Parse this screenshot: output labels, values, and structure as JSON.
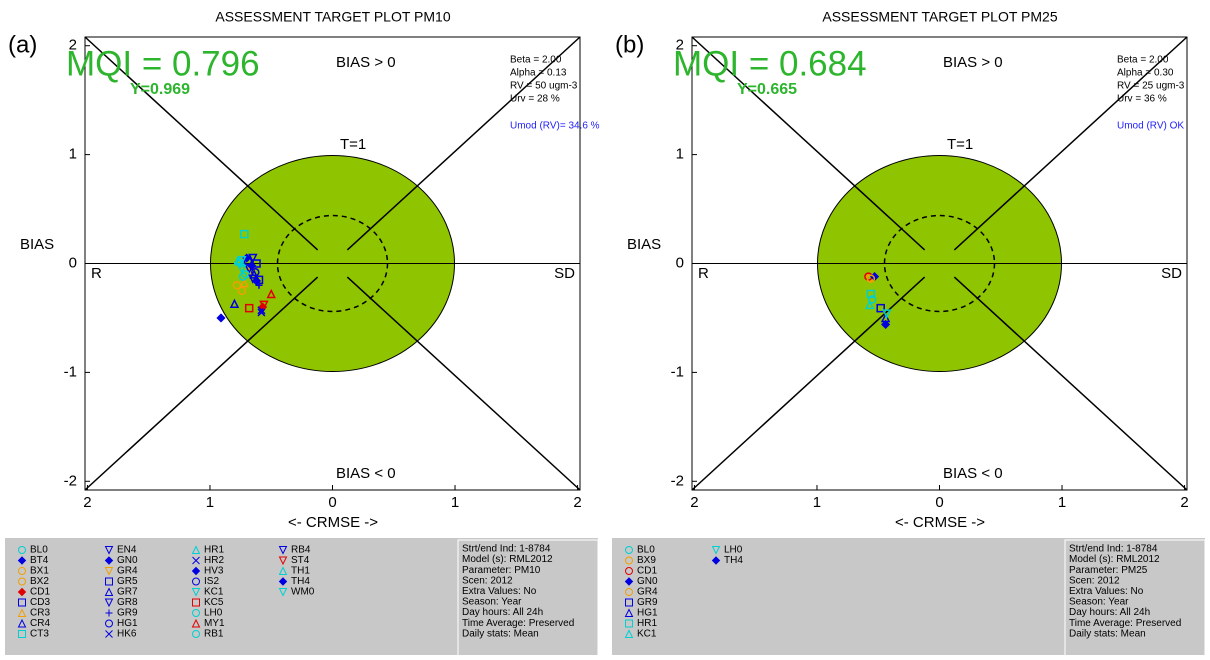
{
  "chart_data": [
    {
      "type": "scatter",
      "title": "ASSESSMENT TARGET PLOT   PM10",
      "panel_label": "(a)",
      "mqi_label": "MQI = 0.796",
      "y_label_text": "Y=0.969",
      "top_label": "BIAS > 0",
      "bottom_label": "BIAS < 0",
      "circle_label": "T=1",
      "left_label": "R",
      "right_label": "SD",
      "y_axis_label": "BIAS",
      "x_axis_label": "<- CRMSE ->",
      "params": [
        "Beta = 2.00",
        "Alpha = 0.13",
        "RV = 50 ugm-3",
        "Urv = 28 %"
      ],
      "umod": "Umod (RV)= 34.6 %",
      "run_info": [
        "Strt/end Ind: 1-8784",
        "Model (s): RML2012",
        "Parameter: PM10",
        "Scen: 2012",
        "Extra Values: No",
        "Season: Year",
        "Day hours: All 24h",
        "Time Average: Preserved",
        "Daily stats: Mean"
      ],
      "xlim": [
        -2.02,
        2.02
      ],
      "ylim": [
        -2.08,
        2.08
      ],
      "xticks": [
        {
          "value": -2,
          "label": "2"
        },
        {
          "value": -1,
          "label": "1"
        },
        0,
        1,
        2
      ],
      "yticks": [
        2,
        1,
        0,
        -1,
        -2
      ],
      "series": [
        {
          "name": "BL0",
          "color": "#00d0d0",
          "marker": "circle",
          "x": [
            -0.75
          ],
          "values": [
            0.0
          ]
        },
        {
          "name": "BT4",
          "color": "#0000e0",
          "marker": "diamond",
          "x": [
            -0.91
          ],
          "values": [
            -0.5
          ]
        },
        {
          "name": "BX1",
          "color": "#f0a000",
          "marker": "circle",
          "x": [
            -0.78
          ],
          "values": [
            -0.2
          ]
        },
        {
          "name": "BX2",
          "color": "#f0a000",
          "marker": "circle",
          "x": [
            -0.74
          ],
          "values": [
            -0.25
          ]
        },
        {
          "name": "CD1",
          "color": "#e00000",
          "marker": "diamond",
          "x": [
            -0.57
          ],
          "values": [
            -0.4
          ]
        },
        {
          "name": "CD3",
          "color": "#0000e0",
          "marker": "square",
          "x": [
            -0.6
          ],
          "values": [
            -0.15
          ]
        },
        {
          "name": "CR3",
          "color": "#f0a000",
          "marker": "triangle",
          "x": [
            -0.72
          ],
          "values": [
            -0.18
          ]
        },
        {
          "name": "CR4",
          "color": "#0000e0",
          "marker": "triangle",
          "x": [
            -0.8
          ],
          "values": [
            -0.37
          ]
        },
        {
          "name": "CT3",
          "color": "#00d0d0",
          "marker": "square",
          "x": [
            -0.72
          ],
          "values": [
            0.27
          ]
        },
        {
          "name": "EN4",
          "color": "#0000e0",
          "marker": "triangle-down",
          "x": [
            -0.65
          ],
          "values": [
            0.05
          ]
        },
        {
          "name": "GN0",
          "color": "#0000e0",
          "marker": "diamond",
          "x": [
            -0.7
          ],
          "values": [
            0.05
          ]
        },
        {
          "name": "GR4",
          "color": "#f0a000",
          "marker": "triangle-down",
          "x": [
            -0.66
          ],
          "values": [
            -0.08
          ]
        },
        {
          "name": "GR5",
          "color": "#0000e0",
          "marker": "square",
          "x": [
            -0.62
          ],
          "values": [
            0.0
          ]
        },
        {
          "name": "GR7",
          "color": "#0000e0",
          "marker": "triangle",
          "x": [
            -0.64
          ],
          "values": [
            -0.1
          ]
        },
        {
          "name": "GR8",
          "color": "#0000e0",
          "marker": "triangle-down",
          "x": [
            -0.68
          ],
          "values": [
            -0.05
          ]
        },
        {
          "name": "GR9",
          "color": "#0000e0",
          "marker": "plus",
          "x": [
            -0.6
          ],
          "values": [
            -0.2
          ]
        },
        {
          "name": "HG1",
          "color": "#0000e0",
          "marker": "circle",
          "x": [
            -0.63
          ],
          "values": [
            -0.08
          ]
        },
        {
          "name": "HK6",
          "color": "#0000e0",
          "marker": "x",
          "x": [
            -0.58
          ],
          "values": [
            -0.43
          ]
        },
        {
          "name": "HR1",
          "color": "#00d0d0",
          "marker": "triangle",
          "x": [
            -0.77
          ],
          "values": [
            0.03
          ]
        },
        {
          "name": "HR2",
          "color": "#0000e0",
          "marker": "x",
          "x": [
            -0.58
          ],
          "values": [
            -0.45
          ]
        },
        {
          "name": "HV3",
          "color": "#0000e0",
          "marker": "diamond",
          "x": [
            -0.66
          ],
          "values": [
            -0.02
          ]
        },
        {
          "name": "IS2",
          "color": "#0000e0",
          "marker": "circle",
          "x": [
            -0.69
          ],
          "values": [
            0.02
          ]
        },
        {
          "name": "KC1",
          "color": "#00d0d0",
          "marker": "triangle-down",
          "x": [
            -0.74
          ],
          "values": [
            -0.05
          ]
        },
        {
          "name": "KC5",
          "color": "#e00000",
          "marker": "square",
          "x": [
            -0.68
          ],
          "values": [
            -0.41
          ]
        },
        {
          "name": "LH0",
          "color": "#00d0d0",
          "marker": "circle",
          "x": [
            -0.71
          ],
          "values": [
            -0.1
          ]
        },
        {
          "name": "MY1",
          "color": "#e00000",
          "marker": "triangle",
          "x": [
            -0.5
          ],
          "values": [
            -0.28
          ]
        },
        {
          "name": "RB1",
          "color": "#00d0d0",
          "marker": "circle",
          "x": [
            -0.73
          ],
          "values": [
            -0.12
          ]
        },
        {
          "name": "RB4",
          "color": "#0000e0",
          "marker": "triangle-down",
          "x": [
            -0.65
          ],
          "values": [
            -0.14
          ]
        },
        {
          "name": "ST4",
          "color": "#e00000",
          "marker": "triangle-down",
          "x": [
            -0.56
          ],
          "values": [
            -0.38
          ]
        },
        {
          "name": "TH1",
          "color": "#00d0d0",
          "marker": "triangle",
          "x": [
            -0.76
          ],
          "values": [
            0.02
          ]
        },
        {
          "name": "TH4",
          "color": "#0000e0",
          "marker": "diamond",
          "x": [
            -0.62
          ],
          "values": [
            -0.16
          ]
        },
        {
          "name": "WM0",
          "color": "#00d0d0",
          "marker": "triangle-down",
          "x": [
            -0.74
          ],
          "values": [
            0.03
          ]
        }
      ]
    },
    {
      "type": "scatter",
      "title": "ASSESSMENT TARGET PLOT   PM25",
      "panel_label": "(b)",
      "mqi_label": "MQI = 0.684",
      "y_label_text": "Y=0.665",
      "top_label": "BIAS > 0",
      "bottom_label": "BIAS < 0",
      "circle_label": "T=1",
      "left_label": "R",
      "right_label": "SD",
      "y_axis_label": "BIAS",
      "x_axis_label": "<- CRMSE ->",
      "params": [
        "Beta = 2.00",
        "Alpha = 0.30",
        "RV = 25 ugm-3",
        "Urv = 36 %"
      ],
      "umod": "Umod (RV) OK",
      "run_info": [
        "Strt/end Ind: 1-8784",
        "Model (s): RML2012",
        "Parameter: PM25",
        "Scen: 2012",
        "Extra Values: No",
        "Season: Year",
        "Day hours: All 24h",
        "Time Average: Preserved",
        "Daily stats: Mean"
      ],
      "xlim": [
        -2.02,
        2.02
      ],
      "ylim": [
        -2.08,
        2.08
      ],
      "xticks": [
        {
          "value": -2,
          "label": "2"
        },
        {
          "value": -1,
          "label": "1"
        },
        0,
        1,
        2
      ],
      "yticks": [
        2,
        1,
        0,
        -1,
        -2
      ],
      "series": [
        {
          "name": "BL0",
          "color": "#00d0d0",
          "marker": "circle",
          "x": [
            -0.55
          ],
          "values": [
            -0.33
          ]
        },
        {
          "name": "BX9",
          "color": "#f0a000",
          "marker": "circle",
          "x": [
            -0.57
          ],
          "values": [
            -0.13
          ]
        },
        {
          "name": "CD1",
          "color": "#e00000",
          "marker": "circle",
          "x": [
            -0.58
          ],
          "values": [
            -0.12
          ]
        },
        {
          "name": "GN0",
          "color": "#0000e0",
          "marker": "diamond",
          "x": [
            -0.53
          ],
          "values": [
            -0.12
          ]
        },
        {
          "name": "GR4",
          "color": "#f0a000",
          "marker": "circle",
          "x": [
            -0.56
          ],
          "values": [
            -0.14
          ]
        },
        {
          "name": "GR9",
          "color": "#0000e0",
          "marker": "square",
          "x": [
            -0.48
          ],
          "values": [
            -0.41
          ]
        },
        {
          "name": "HG1",
          "color": "#0000e0",
          "marker": "triangle",
          "x": [
            -0.44
          ],
          "values": [
            -0.5
          ]
        },
        {
          "name": "HR1",
          "color": "#00d0d0",
          "marker": "square",
          "x": [
            -0.56
          ],
          "values": [
            -0.28
          ]
        },
        {
          "name": "KC1",
          "color": "#00d0d0",
          "marker": "triangle",
          "x": [
            -0.57
          ],
          "values": [
            -0.38
          ]
        },
        {
          "name": "LH0",
          "color": "#00d0d0",
          "marker": "triangle-down",
          "x": [
            -0.43
          ],
          "values": [
            -0.46
          ]
        },
        {
          "name": "TH4",
          "color": "#0000e0",
          "marker": "diamond",
          "x": [
            -0.44
          ],
          "values": [
            -0.56
          ]
        }
      ]
    }
  ]
}
